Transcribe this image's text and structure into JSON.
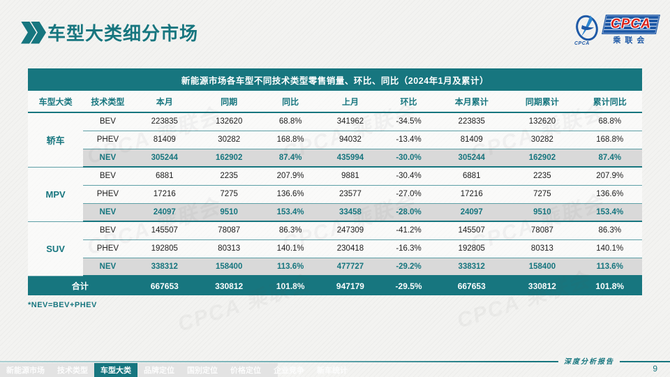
{
  "page": {
    "title": "车型大类细分市场",
    "footnote": "*NEV=BEV+PHEV",
    "footer_label": "深度分析报告",
    "page_number": "9"
  },
  "logo": {
    "text": "CPCA",
    "subtext": "乘联会",
    "emblem_caption": "CPCA"
  },
  "table": {
    "title": "新能源市场各车型不同技术类型零售销量、环比、同比（2024年1月及累计）",
    "columns": [
      "车型大类",
      "技术类型",
      "本月",
      "同期",
      "同比",
      "上月",
      "环比",
      "本月累计",
      "同期累计",
      "累计同比"
    ],
    "groups": [
      {
        "category": "轿车",
        "rows": [
          {
            "type": "BEV",
            "values": [
              "223835",
              "132620",
              "68.8%",
              "341962",
              "-34.5%",
              "223835",
              "132620",
              "68.8%"
            ]
          },
          {
            "type": "PHEV",
            "values": [
              "81409",
              "30282",
              "168.8%",
              "94032",
              "-13.4%",
              "81409",
              "30282",
              "168.8%"
            ]
          },
          {
            "type": "NEV",
            "values": [
              "305244",
              "162902",
              "87.4%",
              "435994",
              "-30.0%",
              "305244",
              "162902",
              "87.4%"
            ]
          }
        ]
      },
      {
        "category": "MPV",
        "rows": [
          {
            "type": "BEV",
            "values": [
              "6881",
              "2235",
              "207.9%",
              "9881",
              "-30.4%",
              "6881",
              "2235",
              "207.9%"
            ]
          },
          {
            "type": "PHEV",
            "values": [
              "17216",
              "7275",
              "136.6%",
              "23577",
              "-27.0%",
              "17216",
              "7275",
              "136.6%"
            ]
          },
          {
            "type": "NEV",
            "values": [
              "24097",
              "9510",
              "153.4%",
              "33458",
              "-28.0%",
              "24097",
              "9510",
              "153.4%"
            ]
          }
        ]
      },
      {
        "category": "SUV",
        "rows": [
          {
            "type": "BEV",
            "values": [
              "145507",
              "78087",
              "86.3%",
              "247309",
              "-41.2%",
              "145507",
              "78087",
              "86.3%"
            ]
          },
          {
            "type": "PHEV",
            "values": [
              "192805",
              "80313",
              "140.1%",
              "230418",
              "-16.3%",
              "192805",
              "80313",
              "140.1%"
            ]
          },
          {
            "type": "NEV",
            "values": [
              "338312",
              "158400",
              "113.6%",
              "477727",
              "-29.2%",
              "338312",
              "158400",
              "113.6%"
            ]
          }
        ]
      }
    ],
    "total": {
      "label": "合计",
      "values": [
        "667653",
        "330812",
        "101.8%",
        "947179",
        "-29.5%",
        "667653",
        "330812",
        "101.8%"
      ]
    }
  },
  "nav": {
    "items": [
      {
        "label": "新能源市场",
        "active": false
      },
      {
        "label": "技术类型",
        "active": false
      },
      {
        "label": "车型大类",
        "active": true
      },
      {
        "label": "品牌定位",
        "active": false
      },
      {
        "label": "国别定位",
        "active": false
      },
      {
        "label": "价格定位",
        "active": false
      },
      {
        "label": "企业竞争",
        "active": false
      },
      {
        "label": "新车统计",
        "active": false
      }
    ]
  },
  "colors": {
    "teal": "#17767f",
    "nev_row_bg": "#d9d9d9",
    "total_row_bg": "#17767f",
    "logo_blue": "#1e59a6",
    "logo_red": "#d9251c"
  }
}
